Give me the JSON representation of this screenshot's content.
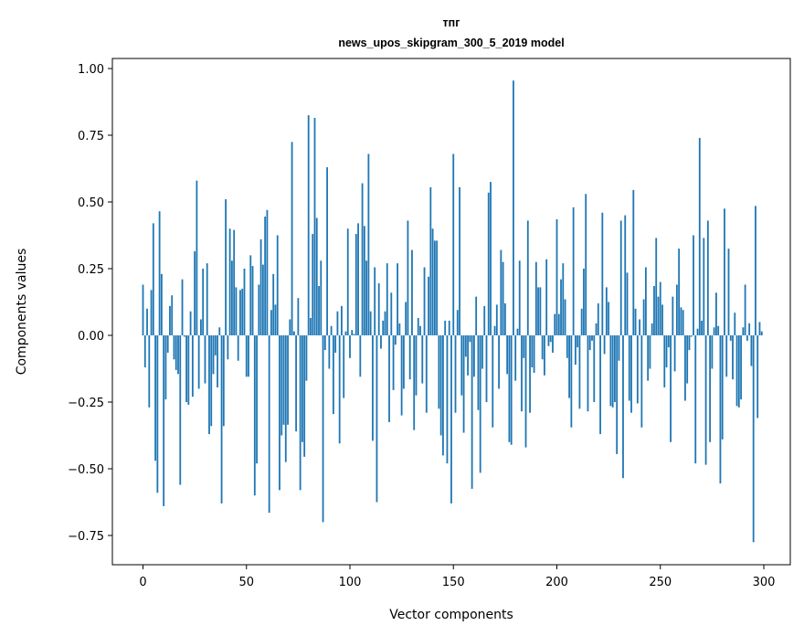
{
  "chart_data": {
    "type": "bar",
    "title_line1": "тпг",
    "title_line2": "news_upos_skipgram_300_5_2019 model",
    "xlabel": "Vector components",
    "ylabel": "Components values",
    "xlim": [
      -15,
      315
    ],
    "ylim": [
      -0.87,
      1.04
    ],
    "xticks": [
      0,
      50,
      100,
      150,
      200,
      250,
      300
    ],
    "xtick_labels": [
      "0",
      "50",
      "100",
      "150",
      "200",
      "250",
      "300"
    ],
    "yticks": [
      -0.75,
      -0.5,
      -0.25,
      0,
      0.25,
      0.5,
      0.75,
      1.0
    ],
    "ytick_labels": [
      "−0.75",
      "−0.50",
      "−0.25",
      "0.00",
      "0.25",
      "0.50",
      "0.75",
      "1.00"
    ],
    "bar_color": "#1f77b4",
    "grid": false,
    "values": [
      0.19,
      -0.12,
      0.1,
      -0.27,
      0.17,
      0.42,
      -0.47,
      -0.59,
      0.465,
      0.23,
      -0.64,
      -0.24,
      -0.065,
      0.11,
      0.15,
      -0.09,
      -0.13,
      -0.145,
      -0.56,
      0.21,
      -0.005,
      -0.25,
      -0.26,
      0.09,
      -0.23,
      0.315,
      0.58,
      -0.2,
      0.06,
      0.25,
      -0.18,
      0.27,
      -0.37,
      -0.34,
      -0.145,
      -0.075,
      -0.195,
      0.03,
      -0.63,
      -0.34,
      0.51,
      -0.09,
      0.4,
      0.28,
      0.395,
      0.18,
      -0.095,
      0.17,
      0.175,
      0.25,
      -0.155,
      -0.155,
      0.3,
      0.26,
      -0.6,
      -0.48,
      0.19,
      0.36,
      0.265,
      0.445,
      0.47,
      -0.665,
      0.095,
      0.23,
      0.115,
      0.375,
      -0.58,
      -0.375,
      -0.335,
      -0.475,
      -0.335,
      0.06,
      0.725,
      0.015,
      -0.36,
      0.14,
      -0.58,
      -0.4,
      -0.455,
      -0.17,
      0.825,
      0.065,
      0.38,
      0.815,
      0.44,
      0.185,
      0.28,
      -0.7,
      -0.055,
      0.63,
      -0.125,
      0.035,
      -0.295,
      -0.065,
      0.09,
      -0.405,
      0.11,
      -0.235,
      0.015,
      0.4,
      -0.085,
      0.02,
      0.005,
      0.38,
      0.42,
      -0.155,
      0.57,
      0.41,
      0.28,
      0.68,
      0.09,
      -0.395,
      0.255,
      -0.625,
      0.195,
      -0.05,
      0.055,
      0.09,
      0.27,
      -0.325,
      0.16,
      -0.205,
      -0.035,
      0.27,
      0.045,
      -0.3,
      -0.2,
      0.125,
      0.43,
      -0.165,
      0.32,
      -0.355,
      -0.225,
      0.065,
      0.035,
      -0.18,
      0.255,
      -0.29,
      0.22,
      0.555,
      0.4,
      0.355,
      0.355,
      -0.275,
      -0.375,
      -0.45,
      0.055,
      -0.48,
      0.055,
      -0.63,
      0.68,
      -0.29,
      0.095,
      0.555,
      -0.225,
      -0.365,
      -0.08,
      -0.15,
      -0.025,
      -0.575,
      -0.155,
      0.145,
      -0.28,
      -0.515,
      -0.125,
      0.11,
      -0.25,
      0.535,
      0.575,
      -0.345,
      0.035,
      0.115,
      -0.2,
      0.32,
      0.275,
      0.12,
      -0.145,
      -0.4,
      -0.41,
      0.955,
      -0.17,
      0.025,
      0.28,
      -0.285,
      -0.085,
      -0.42,
      0.43,
      -0.29,
      -0.12,
      -0.14,
      0.275,
      0.18,
      0.18,
      -0.09,
      -0.15,
      0.285,
      -0.04,
      -0.025,
      -0.065,
      0.08,
      0.435,
      0.08,
      0.21,
      0.27,
      0.135,
      -0.085,
      -0.235,
      -0.345,
      0.48,
      -0.11,
      -0.045,
      -0.275,
      0.1,
      0.25,
      0.53,
      -0.285,
      -0.055,
      -0.02,
      -0.25,
      0.045,
      0.12,
      -0.37,
      0.46,
      -0.07,
      0.18,
      0.125,
      -0.265,
      -0.27,
      -0.25,
      -0.445,
      -0.095,
      0.43,
      -0.535,
      0.45,
      0.235,
      -0.245,
      -0.29,
      0.545,
      0.1,
      -0.255,
      0.06,
      -0.345,
      0.135,
      0.255,
      -0.17,
      -0.125,
      0.045,
      0.185,
      0.365,
      0.145,
      0.2,
      0.115,
      -0.195,
      -0.12,
      -0.045,
      -0.4,
      0.145,
      -0.135,
      0.19,
      0.325,
      0.105,
      0.095,
      -0.245,
      -0.18,
      -0.055,
      -0.005,
      0.375,
      -0.48,
      0.025,
      0.74,
      0.055,
      0.365,
      -0.485,
      0.43,
      -0.4,
      -0.125,
      0.03,
      0.16,
      0.035,
      -0.555,
      -0.39,
      0.475,
      -0.155,
      0.325,
      -0.02,
      -0.165,
      0.085,
      -0.265,
      -0.27,
      -0.24,
      0.03,
      0.19,
      -0.02,
      0.045,
      -0.115,
      -0.775,
      0.485,
      -0.31,
      0.05,
      0.015
    ]
  }
}
